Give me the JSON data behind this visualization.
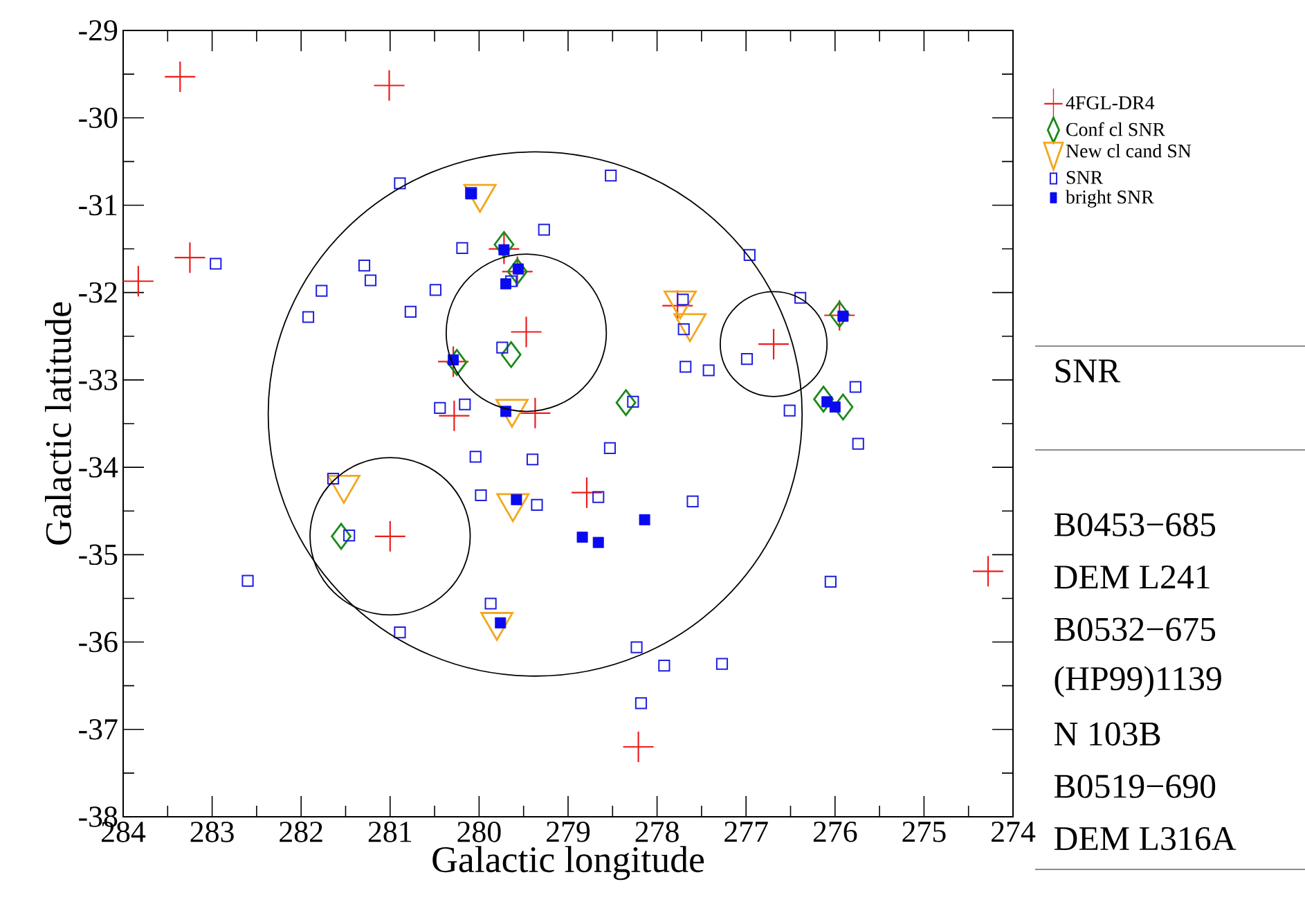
{
  "chart_data": {
    "type": "scatter",
    "xlabel": "Galactic longitude",
    "ylabel": "Galactic latitude",
    "xlim": [
      284,
      274
    ],
    "ylim": [
      -38,
      -29
    ],
    "xticks": [
      284,
      283,
      282,
      281,
      280,
      279,
      278,
      277,
      276,
      275,
      274
    ],
    "yticks": [
      -38,
      -37,
      -36,
      -35,
      -34,
      -33,
      -32,
      -31,
      -30,
      -29
    ],
    "grid": false,
    "legend": "top right",
    "annotations": [
      "SNR",
      "B0453−685",
      "DEM L241",
      "B0532−675",
      "(HP99)1139",
      "N 103B",
      "B0519−690",
      "DEM L316A"
    ],
    "series": [
      {
        "name": "4FGL-DR4",
        "color": "#ee1c1c",
        "marker": "cross",
        "x": [
          283.36,
          281.01,
          283.25,
          283.83,
          279.72,
          279.57,
          279.47,
          280.29,
          280.28,
          279.37,
          277.77,
          276.69,
          275.95,
          281.0,
          278.79,
          278.21,
          274.28
        ],
        "values": [
          -29.53,
          -29.63,
          -31.6,
          -31.87,
          -31.5,
          -31.76,
          -32.45,
          -32.79,
          -33.41,
          -33.38,
          -32.15,
          -32.59,
          -32.26,
          -34.79,
          -34.29,
          -37.2,
          -35.19
        ]
      },
      {
        "name": "Conf  cl SNR",
        "color": "#1a8a1a",
        "marker": "diamond",
        "x": [
          279.72,
          279.57,
          279.64,
          280.25,
          278.35,
          275.95,
          276.13,
          275.91,
          281.55
        ],
        "values": [
          -31.45,
          -31.76,
          -32.71,
          -32.8,
          -33.26,
          -32.25,
          -33.22,
          -33.31,
          -34.79
        ]
      },
      {
        "name": "New cl cand SN",
        "color": "#f2a71e",
        "marker": "triangle_down",
        "x": [
          279.99,
          279.63,
          277.74,
          277.63,
          281.52,
          279.62,
          279.8
        ],
        "values": [
          -30.87,
          -33.33,
          -32.09,
          -32.35,
          -34.2,
          -34.41,
          -35.77
        ]
      },
      {
        "name": "SNR",
        "color": "#1f1fe0",
        "marker": "square",
        "x": [
          280.89,
          280.09,
          279.27,
          280.19,
          282.96,
          281.29,
          281.22,
          281.77,
          280.49,
          281.92,
          280.77,
          279.64,
          279.74,
          280.44,
          280.16,
          280.04,
          279.4,
          279.98,
          279.35,
          281.64,
          281.46,
          282.6,
          280.89,
          279.87,
          278.52,
          276.96,
          276.39,
          277.71,
          277.7,
          276.99,
          277.68,
          277.42,
          278.27,
          276.51,
          275.77,
          275.74,
          278.53,
          278.66,
          277.6,
          276.05,
          278.23,
          277.92,
          277.27,
          278.18
        ],
        "values": [
          -30.75,
          -30.86,
          -31.28,
          -31.49,
          -31.67,
          -31.69,
          -31.86,
          -31.98,
          -31.97,
          -32.28,
          -32.22,
          -31.87,
          -32.63,
          -33.32,
          -33.28,
          -33.88,
          -33.91,
          -34.32,
          -34.43,
          -34.13,
          -34.78,
          -35.3,
          -35.89,
          -35.56,
          -30.66,
          -31.57,
          -32.06,
          -32.08,
          -32.42,
          -32.76,
          -32.85,
          -32.89,
          -33.25,
          -33.35,
          -33.08,
          -33.73,
          -33.78,
          -34.34,
          -34.39,
          -35.31,
          -36.06,
          -36.27,
          -36.25,
          -36.7
        ]
      },
      {
        "name": "bright SNR",
        "color": "#0a0af0",
        "marker": "square_filled",
        "x": [
          280.09,
          279.72,
          279.56,
          279.7,
          280.29,
          279.7,
          279.58,
          279.76,
          278.84,
          278.66,
          278.14,
          275.91,
          276.09,
          276.0
        ],
        "values": [
          -30.87,
          -31.51,
          -31.73,
          -31.9,
          -32.77,
          -33.36,
          -34.37,
          -35.78,
          -34.8,
          -34.86,
          -34.6,
          -32.27,
          -33.25,
          -33.31
        ]
      }
    ]
  }
}
